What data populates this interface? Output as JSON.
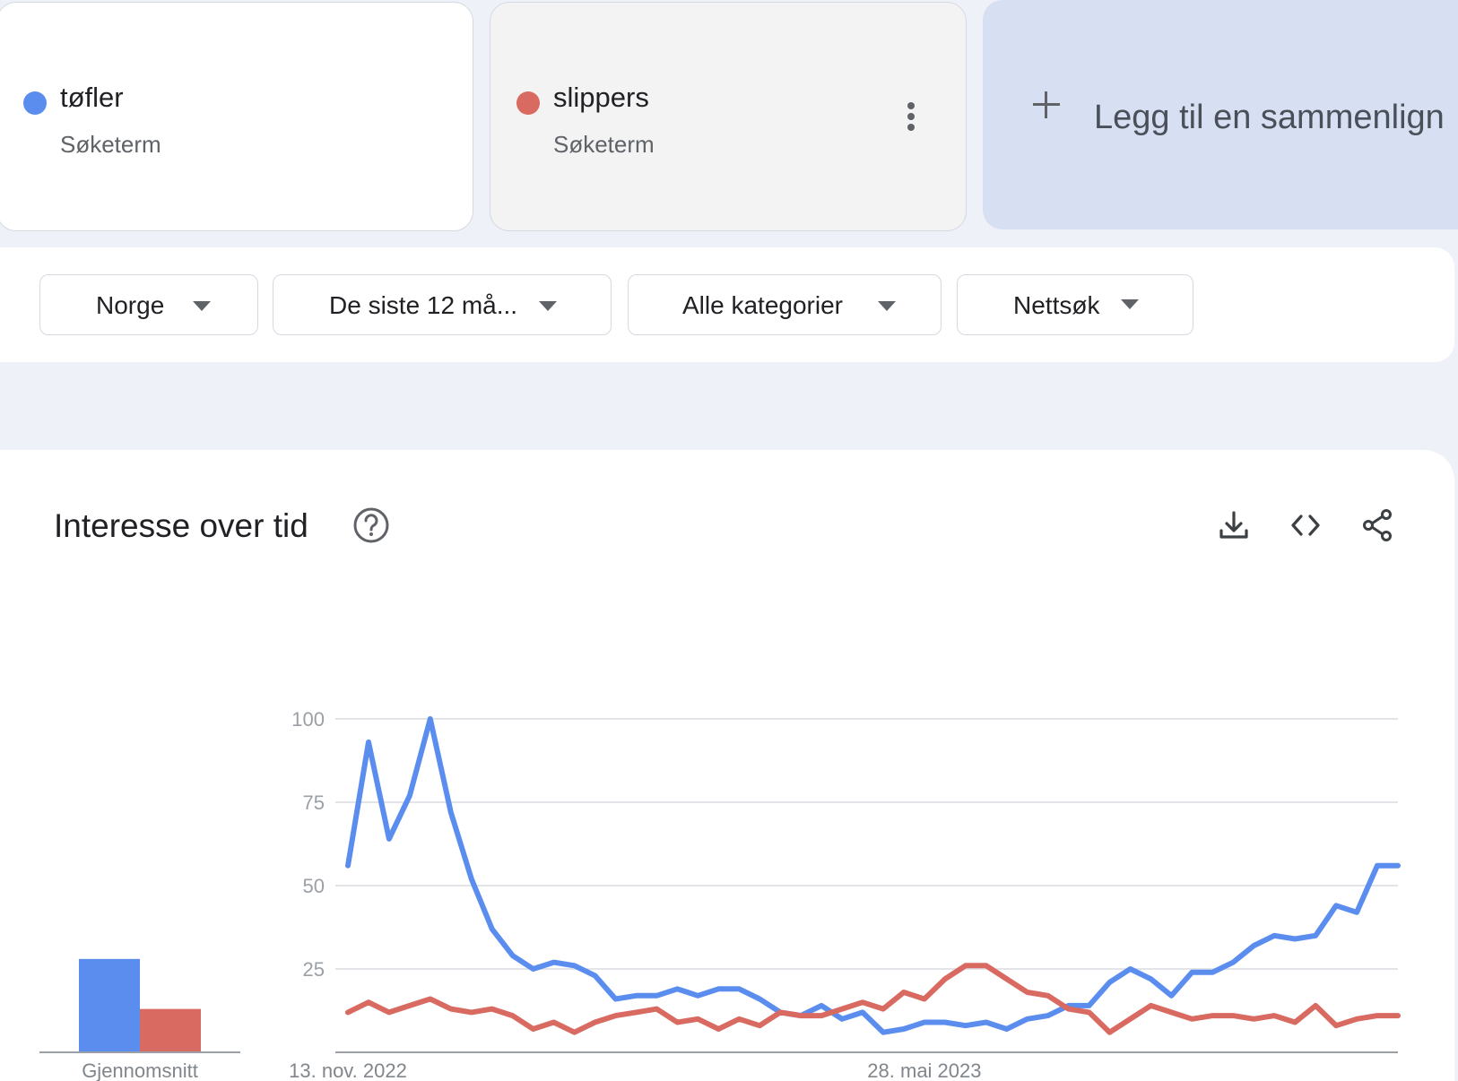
{
  "terms": [
    {
      "name": "tøfler",
      "type": "Søketerm",
      "color": "#5b8def"
    },
    {
      "name": "slippers",
      "type": "Søketerm",
      "color": "#d96a61"
    }
  ],
  "add_comparison": {
    "label": "Legg til en sammenlign"
  },
  "filters": {
    "region": "Norge",
    "period": "De siste 12 må...",
    "category": "Alle kategorier",
    "search_type": "Nettsøk"
  },
  "chart_panel": {
    "title": "Interesse over tid"
  },
  "chart_data": [
    {
      "type": "bar",
      "categories": [
        "Gjennomsnitt"
      ],
      "series": [
        {
          "name": "tøfler",
          "values": [
            28
          ],
          "color": "#5b8def"
        },
        {
          "name": "slippers",
          "values": [
            13
          ],
          "color": "#d96a61"
        }
      ],
      "xlabel": "Gjennomsnitt",
      "ylim": [
        0,
        100
      ]
    },
    {
      "type": "line",
      "x": [
        "2022-11-13",
        "2022-11-20",
        "2022-11-27",
        "2022-12-04",
        "2022-12-11",
        "2022-12-18",
        "2022-12-25",
        "2023-01-01",
        "2023-01-08",
        "2023-01-15",
        "2023-01-22",
        "2023-01-29",
        "2023-02-05",
        "2023-02-12",
        "2023-02-19",
        "2023-02-26",
        "2023-03-05",
        "2023-03-12",
        "2023-03-19",
        "2023-03-26",
        "2023-04-02",
        "2023-04-09",
        "2023-04-16",
        "2023-04-23",
        "2023-04-30",
        "2023-05-07",
        "2023-05-14",
        "2023-05-21",
        "2023-05-28",
        "2023-06-04",
        "2023-06-11",
        "2023-06-18",
        "2023-06-25",
        "2023-07-02",
        "2023-07-09",
        "2023-07-16",
        "2023-07-23",
        "2023-07-30",
        "2023-08-06",
        "2023-08-13",
        "2023-08-20",
        "2023-08-27",
        "2023-09-03",
        "2023-09-10",
        "2023-09-17",
        "2023-09-24",
        "2023-10-01",
        "2023-10-08",
        "2023-10-15",
        "2023-10-22",
        "2023-10-29",
        "2023-11-05"
      ],
      "series": [
        {
          "name": "tøfler",
          "color": "#5b8def",
          "values": [
            56,
            93,
            64,
            77,
            100,
            72,
            52,
            37,
            29,
            25,
            27,
            26,
            23,
            16,
            17,
            17,
            19,
            17,
            19,
            19,
            16,
            12,
            11,
            14,
            10,
            12,
            6,
            7,
            9,
            9,
            8,
            9,
            7,
            10,
            11,
            14,
            14,
            21,
            25,
            22,
            17,
            24,
            24,
            27,
            32,
            35,
            34,
            35,
            44,
            42,
            56,
            56
          ]
        },
        {
          "name": "slippers",
          "color": "#d96a61",
          "values": [
            12,
            15,
            12,
            14,
            16,
            13,
            12,
            13,
            11,
            7,
            9,
            6,
            9,
            11,
            12,
            13,
            9,
            10,
            7,
            10,
            8,
            12,
            11,
            11,
            13,
            15,
            13,
            18,
            16,
            22,
            26,
            26,
            22,
            18,
            17,
            13,
            12,
            6,
            10,
            14,
            12,
            10,
            11,
            11,
            10,
            11,
            9,
            14,
            8,
            10,
            11,
            11
          ]
        }
      ],
      "x_tick_labels": [
        "13. nov. 2022",
        "28. mai 2023"
      ],
      "y_ticks": [
        25,
        50,
        75,
        100
      ],
      "ylim": [
        0,
        100
      ],
      "grid": true
    }
  ]
}
